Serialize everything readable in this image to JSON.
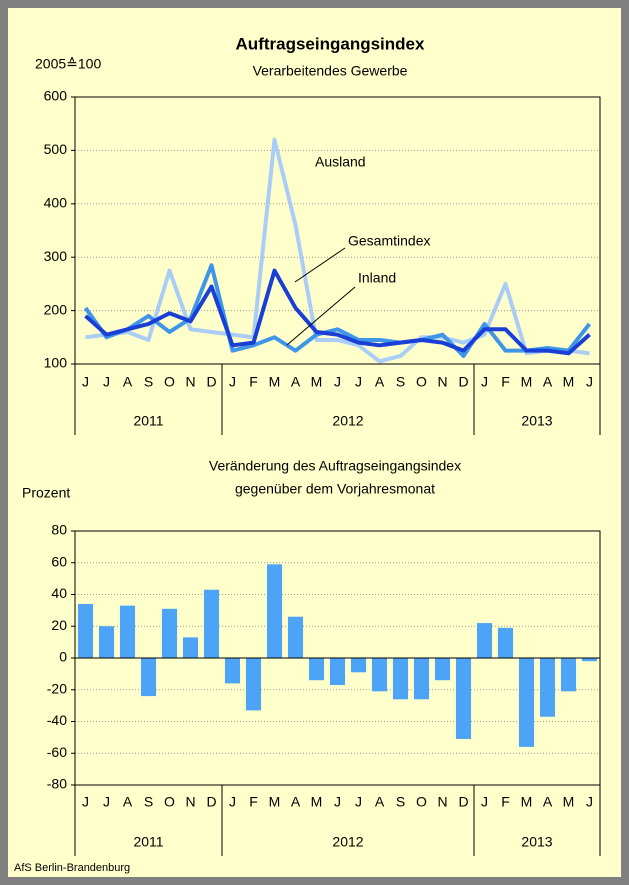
{
  "chart_data": [
    {
      "type": "line",
      "title": "Auftragseingangsindex",
      "subtitle": "Verarbeitendes Gewerbe",
      "y_label": "2005≙100",
      "categories": [
        "J",
        "J",
        "A",
        "S",
        "O",
        "N",
        "D",
        "J",
        "F",
        "M",
        "A",
        "M",
        "J",
        "J",
        "A",
        "S",
        "O",
        "N",
        "D",
        "J",
        "F",
        "M",
        "A",
        "M",
        "J"
      ],
      "groups": [
        "2011",
        "2012",
        "2013"
      ],
      "series": [
        {
          "name": "Ausland",
          "color": "#a9cdf7",
          "values": [
            150,
            155,
            160,
            145,
            275,
            165,
            160,
            155,
            150,
            520,
            360,
            145,
            145,
            135,
            105,
            115,
            150,
            150,
            140,
            155,
            250,
            120,
            125,
            125,
            120
          ]
        },
        {
          "name": "Inland",
          "color": "#3f96e8",
          "values": [
            205,
            150,
            165,
            190,
            160,
            185,
            285,
            125,
            135,
            150,
            125,
            155,
            165,
            145,
            145,
            140,
            145,
            155,
            115,
            175,
            125,
            125,
            130,
            125,
            175
          ]
        },
        {
          "name": "Gesamtindex",
          "color": "#1a3fd6",
          "values": [
            190,
            155,
            165,
            175,
            195,
            180,
            245,
            135,
            140,
            275,
            205,
            160,
            155,
            140,
            135,
            140,
            145,
            140,
            125,
            165,
            165,
            125,
            125,
            120,
            155
          ]
        }
      ],
      "annotations": [
        "Ausland",
        "Gesamtindex",
        "Inland"
      ],
      "ylim": [
        100,
        600
      ],
      "yticks": [
        100,
        200,
        300,
        400,
        500,
        600
      ],
      "grid": true
    },
    {
      "type": "bar",
      "title": [
        "Veränderung des Auftragseingangsindex",
        "gegenüber dem Vorjahresmonat"
      ],
      "y_label": "Prozent",
      "categories": [
        "J",
        "J",
        "A",
        "S",
        "O",
        "N",
        "D",
        "J",
        "F",
        "M",
        "A",
        "M",
        "J",
        "J",
        "A",
        "S",
        "O",
        "N",
        "D",
        "J",
        "F",
        "M",
        "A",
        "M",
        "J"
      ],
      "groups": [
        "2011",
        "2012",
        "2013"
      ],
      "values": [
        34,
        20,
        33,
        -24,
        31,
        13,
        43,
        -16,
        -33,
        59,
        26,
        -14,
        -17,
        -9,
        -21,
        -26,
        -26,
        -14,
        -51,
        22,
        19,
        -56,
        -37,
        -21,
        -2
      ],
      "color": "#4da3f5",
      "ylim": [
        -80,
        80
      ],
      "yticks": [
        -80,
        -60,
        -40,
        -20,
        0,
        20,
        40,
        60,
        80
      ],
      "grid": true
    }
  ],
  "footer": "AfS Berlin-Brandenburg"
}
